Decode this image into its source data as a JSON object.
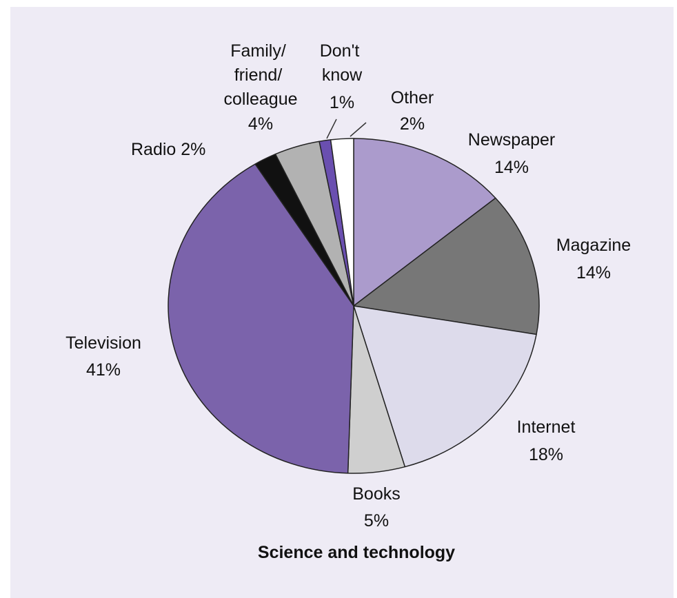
{
  "chart_data": {
    "type": "pie",
    "title": "Science and technology",
    "slices": [
      {
        "label": "Newspaper",
        "value": 14,
        "value_label": "14%",
        "color": "#ab9bcc"
      },
      {
        "label": "Magazine",
        "value": 14,
        "value_label": "14%",
        "color": "#777777"
      },
      {
        "label": "Internet",
        "value": 18,
        "value_label": "18%",
        "color": "#dddbeb"
      },
      {
        "label": "Books",
        "value": 5,
        "value_label": "5%",
        "color": "#cfcfcf"
      },
      {
        "label": "Television",
        "value": 41,
        "value_label": "41%",
        "color": "#7b63ab"
      },
      {
        "label": "Radio",
        "value": 2,
        "value_label": "2%",
        "color": "#111111"
      },
      {
        "label": "Family/ friend/ colleague",
        "value": 4,
        "value_label": "4%",
        "color": "#b2b2b2"
      },
      {
        "label": "Don't know",
        "value": 1,
        "value_label": "1%",
        "color": "#6a4fb0"
      },
      {
        "label": "Other",
        "value": 2,
        "value_label": "2%",
        "color": "#ffffff"
      }
    ]
  }
}
